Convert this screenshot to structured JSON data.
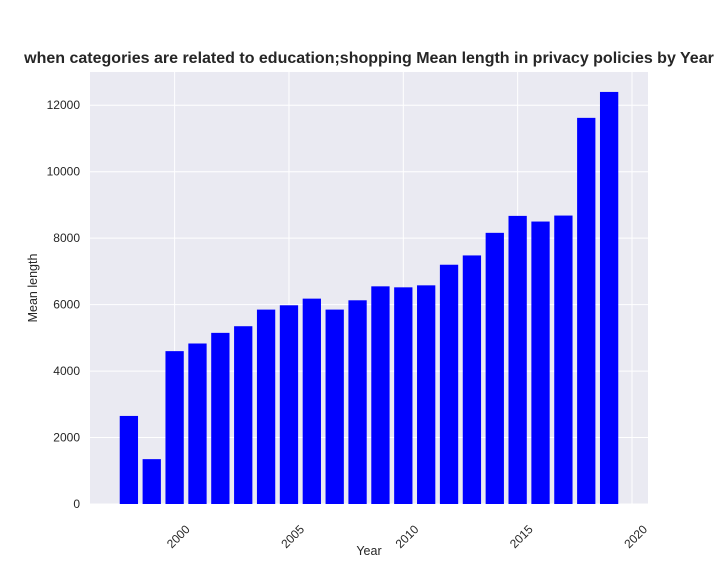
{
  "chart_data": {
    "type": "bar",
    "title": "when categories are related to education;shopping Mean length in privacy policies by Year",
    "xlabel": "Year",
    "ylabel": "Mean length",
    "x": [
      1998,
      1999,
      2000,
      2001,
      2002,
      2003,
      2004,
      2005,
      2006,
      2007,
      2008,
      2009,
      2010,
      2011,
      2012,
      2013,
      2014,
      2015,
      2016,
      2017,
      2018,
      2019
    ],
    "values": [
      2650,
      1350,
      4600,
      4830,
      5150,
      5350,
      5850,
      5980,
      6180,
      5850,
      6130,
      6550,
      6520,
      6580,
      7200,
      7480,
      8160,
      8670,
      8500,
      8680,
      11620,
      12400
    ],
    "xlim": [
      1996.3,
      2020.7
    ],
    "ylim": [
      0,
      13000
    ],
    "xticks": [
      2000,
      2005,
      2010,
      2015,
      2020
    ],
    "yticks": [
      0,
      2000,
      4000,
      6000,
      8000,
      10000,
      12000
    ],
    "bar_color": "#0000ff",
    "plot_background": "#eaeaf2",
    "grid_color": "#ffffff",
    "grid": true,
    "legend": false
  }
}
